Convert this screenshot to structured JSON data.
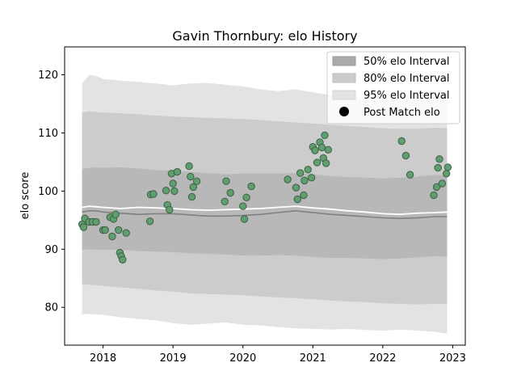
{
  "chart_data": {
    "type": "scatter",
    "title": "Gavin Thornbury: elo History",
    "xlabel": "",
    "ylabel": "elo score",
    "xlim": [
      2017.45,
      2023.18
    ],
    "ylim": [
      73.5,
      124.8
    ],
    "x_ticks": [
      {
        "value": 2018,
        "label": "2018"
      },
      {
        "value": 2019,
        "label": "2019"
      },
      {
        "value": 2020,
        "label": "2020"
      },
      {
        "value": 2021,
        "label": "2021"
      },
      {
        "value": 2022,
        "label": "2022"
      },
      {
        "value": 2023,
        "label": "2023"
      }
    ],
    "y_ticks": [
      {
        "value": 80,
        "label": "80"
      },
      {
        "value": 90,
        "label": "90"
      },
      {
        "value": 100,
        "label": "100"
      },
      {
        "value": 110,
        "label": "110"
      },
      {
        "value": 120,
        "label": "120"
      }
    ],
    "grid": false,
    "legend_position": "top-right",
    "legend": [
      {
        "key": "band50",
        "label": "50% elo Interval"
      },
      {
        "key": "band80",
        "label": "80% elo Interval"
      },
      {
        "key": "band95",
        "label": "95% elo Interval"
      },
      {
        "key": "points",
        "label": "Post Match elo"
      }
    ],
    "colors": {
      "band95": "#e3e3e3",
      "band80": "#cccccc",
      "band50": "#b8b8b8",
      "median": "#808080",
      "mean": "#ffffff",
      "point_fill": "#5f9e6e",
      "point_edge": "#3f5f46"
    },
    "bands": {
      "x": [
        2017.7,
        2017.8,
        2017.9,
        2018.0,
        2018.25,
        2018.5,
        2018.75,
        2019.0,
        2019.25,
        2019.5,
        2019.75,
        2020.0,
        2020.25,
        2020.5,
        2020.75,
        2021.0,
        2021.25,
        2021.5,
        2021.75,
        2022.0,
        2022.25,
        2022.5,
        2022.75,
        2022.92
      ],
      "band95_upper": [
        118.5,
        120.0,
        119.8,
        119.3,
        119.0,
        118.8,
        118.5,
        118.2,
        118.5,
        118.6,
        118.3,
        118.0,
        117.5,
        117.2,
        117.5,
        117.0,
        116.5,
        116.3,
        116.0,
        115.8,
        115.6,
        116.0,
        116.4,
        116.2
      ],
      "band95_lower": [
        78.8,
        78.9,
        78.8,
        78.7,
        78.3,
        78.0,
        77.8,
        77.3,
        77.0,
        77.2,
        77.4,
        77.0,
        76.9,
        76.6,
        76.4,
        76.3,
        76.2,
        76.3,
        76.1,
        76.0,
        76.2,
        76.0,
        75.8,
        75.5
      ],
      "band80_upper": [
        113.5,
        113.7,
        113.6,
        113.5,
        113.4,
        113.2,
        113.0,
        112.8,
        112.7,
        112.6,
        112.5,
        112.4,
        112.2,
        112.0,
        111.8,
        111.6,
        111.4,
        111.2,
        111.0,
        110.8,
        110.7,
        110.7,
        110.9,
        110.8
      ],
      "band80_lower": [
        84.0,
        83.9,
        83.8,
        83.7,
        83.4,
        83.2,
        82.9,
        82.7,
        82.4,
        82.3,
        82.2,
        82.1,
        81.9,
        81.7,
        81.6,
        81.4,
        81.2,
        81.0,
        80.9,
        80.7,
        80.6,
        80.5,
        80.6,
        80.6
      ],
      "band50_upper": [
        103.8,
        104.0,
        104.1,
        104.0,
        104.1,
        103.9,
        103.6,
        103.5,
        103.3,
        103.1,
        102.9,
        103.0,
        103.0,
        103.0,
        103.1,
        102.9,
        102.6,
        102.4,
        102.3,
        102.2,
        102.3,
        102.5,
        102.8,
        102.6
      ],
      "band50_lower": [
        89.9,
        90.0,
        89.9,
        89.9,
        89.9,
        89.7,
        89.6,
        89.5,
        89.3,
        89.2,
        89.1,
        88.9,
        88.9,
        89.0,
        88.9,
        88.7,
        88.5,
        88.5,
        88.4,
        88.3,
        88.4,
        88.6,
        88.8,
        88.7
      ],
      "median": [
        96.4,
        96.6,
        96.6,
        96.4,
        96.2,
        96.0,
        96.1,
        96.1,
        95.9,
        95.7,
        95.7,
        95.8,
        96.0,
        96.3,
        96.6,
        96.3,
        96.0,
        95.8,
        95.6,
        95.4,
        95.3,
        95.4,
        95.6,
        95.6
      ],
      "mean": [
        97.2,
        97.4,
        97.3,
        97.2,
        97.0,
        97.2,
        97.1,
        97.0,
        96.8,
        96.7,
        96.8,
        96.9,
        97.0,
        97.2,
        97.4,
        97.1,
        96.9,
        96.6,
        96.4,
        96.1,
        96.0,
        96.2,
        96.3,
        96.4
      ]
    },
    "points": [
      {
        "x": 2017.7,
        "y": 94.3
      },
      {
        "x": 2017.72,
        "y": 93.8
      },
      {
        "x": 2017.74,
        "y": 95.3
      },
      {
        "x": 2017.8,
        "y": 94.7
      },
      {
        "x": 2017.85,
        "y": 94.7
      },
      {
        "x": 2017.9,
        "y": 94.7
      },
      {
        "x": 2018.0,
        "y": 93.3
      },
      {
        "x": 2018.03,
        "y": 93.3
      },
      {
        "x": 2018.1,
        "y": 95.5
      },
      {
        "x": 2018.13,
        "y": 92.2
      },
      {
        "x": 2018.15,
        "y": 95.2
      },
      {
        "x": 2018.18,
        "y": 96.0
      },
      {
        "x": 2018.22,
        "y": 93.3
      },
      {
        "x": 2018.24,
        "y": 89.4
      },
      {
        "x": 2018.26,
        "y": 88.8
      },
      {
        "x": 2018.28,
        "y": 88.2
      },
      {
        "x": 2018.33,
        "y": 92.8
      },
      {
        "x": 2018.67,
        "y": 94.8
      },
      {
        "x": 2018.68,
        "y": 99.4
      },
      {
        "x": 2018.72,
        "y": 99.5
      },
      {
        "x": 2018.9,
        "y": 100.1
      },
      {
        "x": 2018.92,
        "y": 97.6
      },
      {
        "x": 2018.95,
        "y": 96.8
      },
      {
        "x": 2018.98,
        "y": 103.0
      },
      {
        "x": 2019.0,
        "y": 101.3
      },
      {
        "x": 2019.02,
        "y": 100.0
      },
      {
        "x": 2019.06,
        "y": 103.3
      },
      {
        "x": 2019.23,
        "y": 104.3
      },
      {
        "x": 2019.25,
        "y": 102.5
      },
      {
        "x": 2019.27,
        "y": 99.0
      },
      {
        "x": 2019.29,
        "y": 100.7
      },
      {
        "x": 2019.34,
        "y": 101.7
      },
      {
        "x": 2019.74,
        "y": 98.2
      },
      {
        "x": 2019.76,
        "y": 101.7
      },
      {
        "x": 2019.82,
        "y": 99.7
      },
      {
        "x": 2020.0,
        "y": 97.4
      },
      {
        "x": 2020.02,
        "y": 95.2
      },
      {
        "x": 2020.05,
        "y": 98.9
      },
      {
        "x": 2020.12,
        "y": 100.8
      },
      {
        "x": 2020.64,
        "y": 102.0
      },
      {
        "x": 2020.76,
        "y": 100.6
      },
      {
        "x": 2020.78,
        "y": 98.6
      },
      {
        "x": 2020.82,
        "y": 103.1
      },
      {
        "x": 2020.87,
        "y": 99.3
      },
      {
        "x": 2020.88,
        "y": 101.8
      },
      {
        "x": 2020.93,
        "y": 103.7
      },
      {
        "x": 2020.98,
        "y": 102.3
      },
      {
        "x": 2021.0,
        "y": 107.6
      },
      {
        "x": 2021.03,
        "y": 107.0
      },
      {
        "x": 2021.06,
        "y": 104.9
      },
      {
        "x": 2021.1,
        "y": 108.4
      },
      {
        "x": 2021.13,
        "y": 107.5
      },
      {
        "x": 2021.15,
        "y": 105.7
      },
      {
        "x": 2021.17,
        "y": 109.6
      },
      {
        "x": 2021.19,
        "y": 104.8
      },
      {
        "x": 2021.22,
        "y": 107.1
      },
      {
        "x": 2022.27,
        "y": 108.6
      },
      {
        "x": 2022.33,
        "y": 106.1
      },
      {
        "x": 2022.39,
        "y": 102.8
      },
      {
        "x": 2022.73,
        "y": 99.3
      },
      {
        "x": 2022.77,
        "y": 100.7
      },
      {
        "x": 2022.79,
        "y": 104.0
      },
      {
        "x": 2022.81,
        "y": 105.5
      },
      {
        "x": 2022.85,
        "y": 101.3
      },
      {
        "x": 2022.91,
        "y": 103.0
      },
      {
        "x": 2022.93,
        "y": 104.1
      }
    ]
  }
}
